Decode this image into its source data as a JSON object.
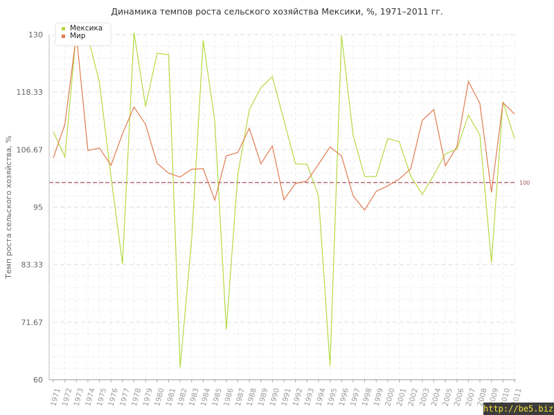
{
  "chart_data": {
    "type": "line",
    "title": "Динамика темпов роста сельского хозяйства Мексики, %, 1971–2011 гг.",
    "xlabel": "",
    "ylabel": "Темп роста сельского хозяйства, %",
    "categories": [
      "1971",
      "1972",
      "1973",
      "1974",
      "1975",
      "1976",
      "1977",
      "1978",
      "1979",
      "1980",
      "1981",
      "1982",
      "1983",
      "1984",
      "1985",
      "1986",
      "1987",
      "1988",
      "1989",
      "1990",
      "1991",
      "1992",
      "1993",
      "1994",
      "1995",
      "1996",
      "1997",
      "1998",
      "1999",
      "2000",
      "2001",
      "2002",
      "2003",
      "2004",
      "2005",
      "2006",
      "2007",
      "2008",
      "2009",
      "2010",
      "2011"
    ],
    "series": [
      {
        "name": "Мексика",
        "color": "#b5d93f",
        "values": [
          110.3,
          105.2,
          130.5,
          129.6,
          120.3,
          101.2,
          83.5,
          130.4,
          115.4,
          126.2,
          125.9,
          62.5,
          88.5,
          128.8,
          112.5,
          70.2,
          101.6,
          114.8,
          119.2,
          121.5,
          112.6,
          103.8,
          103.7,
          97.3,
          62.8,
          129.8,
          109.6,
          101.2,
          101.2,
          108.9,
          108.3,
          101.3,
          97.6,
          101.5,
          105.8,
          106.8,
          113.7,
          109.6,
          83.8,
          116.4,
          108.9
        ]
      },
      {
        "name": "Мир",
        "color": "#e07a50",
        "values": [
          105.0,
          111.8,
          130.0,
          106.5,
          107.0,
          103.5,
          109.9,
          115.3,
          111.8,
          103.9,
          101.9,
          101.1,
          102.7,
          102.8,
          96.4,
          105.4,
          106.1,
          111.0,
          103.8,
          107.4,
          96.5,
          99.8,
          100.3,
          103.7,
          107.2,
          105.4,
          97.3,
          94.4,
          98.2,
          99.3,
          100.7,
          102.8,
          112.6,
          114.8,
          103.4,
          107.3,
          120.5,
          116.0,
          98.0,
          116.2,
          113.9
        ]
      }
    ],
    "ylim": [
      60,
      130
    ],
    "yticks": [
      "60",
      "71.67",
      "83.33",
      "95",
      "106.67",
      "118.33",
      "130"
    ],
    "ytick_values": [
      60,
      71.67,
      83.33,
      95,
      106.67,
      118.33,
      130
    ],
    "reference_line": {
      "value": 100,
      "label": "100",
      "color": "#a0525a"
    },
    "grid": true,
    "legend": "top-left"
  },
  "watermark": "http://be5.biz/"
}
